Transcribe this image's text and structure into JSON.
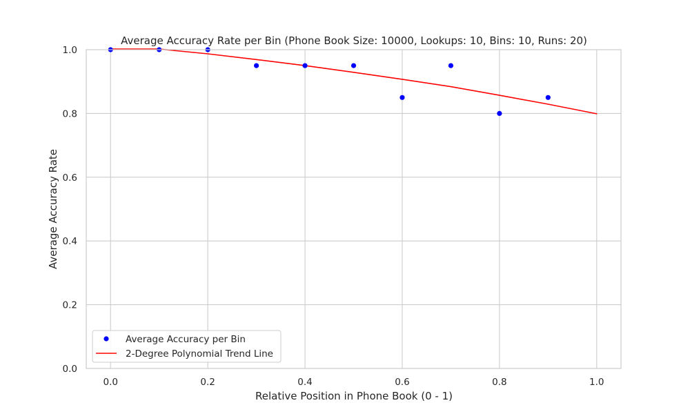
{
  "chart_data": {
    "type": "scatter",
    "title": "Average Accuracy Rate per Bin (Phone Book Size: 10000, Lookups: 10, Bins: 10, Runs: 20)",
    "xlabel": "Relative Position in Phone Book (0 - 1)",
    "ylabel": "Average Accuracy Rate",
    "xlim": [
      -0.05,
      1.05
    ],
    "ylim": [
      0,
      1
    ],
    "xticks": [
      0.0,
      0.2,
      0.4,
      0.6,
      0.8,
      1.0
    ],
    "yticks": [
      0.0,
      0.2,
      0.4,
      0.6,
      0.8,
      1.0
    ],
    "xtick_labels": [
      "0.0",
      "0.2",
      "0.4",
      "0.6",
      "0.8",
      "1.0"
    ],
    "ytick_labels": [
      "0.0",
      "0.2",
      "0.4",
      "0.6",
      "0.8",
      "1.0"
    ],
    "grid": true,
    "legend_position": "lower-left",
    "series": [
      {
        "name": "Average Accuracy per Bin",
        "kind": "scatter",
        "color": "#0000ff",
        "x": [
          0.0,
          0.1,
          0.2,
          0.3,
          0.4,
          0.5,
          0.6,
          0.7,
          0.8,
          0.9
        ],
        "y": [
          1.0,
          1.0,
          1.0,
          0.95,
          0.95,
          0.95,
          0.85,
          0.95,
          0.8,
          0.85
        ]
      },
      {
        "name": "2-Degree Polynomial Trend Line",
        "kind": "line",
        "color": "#ff0000",
        "x": [
          0.0,
          0.1,
          0.2,
          0.3,
          0.4,
          0.5,
          0.6,
          0.7,
          0.8,
          0.9,
          1.0
        ],
        "y": [
          1.002,
          1.002,
          0.987,
          0.969,
          0.95,
          0.929,
          0.907,
          0.884,
          0.857,
          0.829,
          0.799
        ]
      }
    ]
  }
}
